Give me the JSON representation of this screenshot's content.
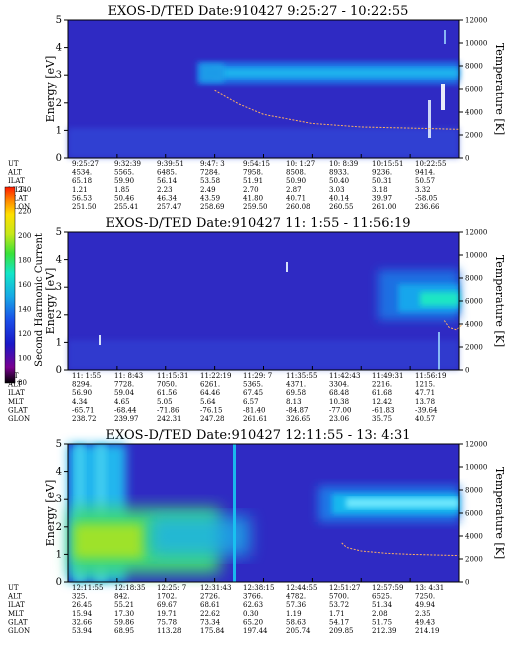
{
  "chart_data": [
    {
      "type": "heatmap",
      "title": "EXOS-D/TED   Date:910427  9:25:27 - 10:22:55",
      "ylabel": "Energy [eV]",
      "y2label": "Temperature [K]",
      "ylim": [
        0,
        5
      ],
      "y2lim": [
        0,
        12000
      ],
      "yticks": [
        "0",
        "1",
        "2",
        "3",
        "4",
        "5"
      ],
      "y2ticks": [
        "0",
        "2000",
        "4000",
        "6000",
        "8000",
        "10000",
        "12000"
      ],
      "row_labels": [
        "UT",
        "ALT",
        "ILAT",
        "MLT",
        "GLAT",
        "GLON"
      ],
      "columns": [
        [
          "9:25:27",
          "4534.",
          "65.18",
          "1.21",
          "56.53",
          "251.50"
        ],
        [
          "9:32:39",
          "5565.",
          "59.90",
          "1.85",
          "50.46",
          "255.41"
        ],
        [
          "9:39:51",
          "6485.",
          "56.14",
          "2.23",
          "46.34",
          "257.47"
        ],
        [
          "9:47: 3",
          "7284.",
          "53.58",
          "2.49",
          "43.59",
          "258.69"
        ],
        [
          "9:54:15",
          "7958.",
          "51.91",
          "2.70",
          "41.80",
          "259.50"
        ],
        [
          "10: 1:27",
          "8508.",
          "50.90",
          "2.87",
          "40.71",
          "260.08"
        ],
        [
          "10: 8:39",
          "8933.",
          "50.40",
          "3.03",
          "40.14",
          "260.55"
        ],
        [
          "10:15:51",
          "9236.",
          "50.31",
          "3.18",
          "39.97",
          "261.00"
        ],
        [
          "10:22:55",
          "9414.",
          "50.57",
          "3.32",
          "-58.05",
          "236.66"
        ]
      ],
      "temperature_trace": {
        "x": [
          3.0,
          3.5,
          4.0,
          5.0,
          6.0,
          7.0,
          8.0
        ],
        "y": [
          5900,
          4700,
          3800,
          3000,
          2700,
          2600,
          2500
        ]
      }
    },
    {
      "type": "heatmap",
      "title": "EXOS-D/TED   Date:910427  11: 1:55 - 11:56:19",
      "ylabel": "Energy [eV]",
      "y2label": "Temperature [K]",
      "ylim": [
        0,
        5
      ],
      "y2lim": [
        0,
        12000
      ],
      "yticks": [
        "0",
        "1",
        "2",
        "3",
        "4",
        "5"
      ],
      "y2ticks": [
        "0",
        "2000",
        "4000",
        "6000",
        "8000",
        "10000",
        "12000"
      ],
      "row_labels": [
        "UT",
        "ALT",
        "ILAT",
        "MLT",
        "GLAT",
        "GLON"
      ],
      "columns": [
        [
          "11: 1:55",
          "8294.",
          "56.90",
          "4.34",
          "-65.71",
          "238.72"
        ],
        [
          "11: 8:43",
          "7728.",
          "59.04",
          "4.65",
          "-68.44",
          "239.97"
        ],
        [
          "11:15:31",
          "7050.",
          "61.56",
          "5.05",
          "-71.86",
          "242.31"
        ],
        [
          "11:22:19",
          "6261.",
          "64.46",
          "5.64",
          "-76.15",
          "247.28"
        ],
        [
          "11:29: 7",
          "5365.",
          "67.45",
          "6.57",
          "-81.40",
          "261.61"
        ],
        [
          "11:35:55",
          "4371.",
          "69.58",
          "8.13",
          "-84.87",
          "326.65"
        ],
        [
          "11:42:43",
          "3304.",
          "68.48",
          "10.38",
          "-77.00",
          "23.06"
        ],
        [
          "11:49:31",
          "2216.",
          "61.68",
          "12.42",
          "-61.83",
          "35.75"
        ],
        [
          "11:56:19",
          "1215.",
          "47.71",
          "13.78",
          "-39.64",
          "40.57"
        ]
      ],
      "temperature_trace": {
        "x": [
          7.7,
          7.8,
          7.95,
          8.05
        ],
        "y": [
          4300,
          3700,
          3500,
          3900
        ]
      }
    },
    {
      "type": "heatmap",
      "title": "EXOS-D/TED   Date:910427  12:11:55 - 13: 4:31",
      "ylabel": "Energy [eV]",
      "y2label": "Temperature [K]",
      "ylim": [
        0,
        5
      ],
      "y2lim": [
        0,
        12000
      ],
      "yticks": [
        "0",
        "1",
        "2",
        "3",
        "4",
        "5"
      ],
      "y2ticks": [
        "0",
        "2000",
        "4000",
        "6000",
        "8000",
        "10000",
        "12000"
      ],
      "row_labels": [
        "UT",
        "ALT",
        "ILAT",
        "MLT",
        "GLAT",
        "GLON"
      ],
      "columns": [
        [
          "12:11:55",
          "325.",
          "26.45",
          "15.94",
          "32.66",
          "53.94"
        ],
        [
          "12:18:35",
          "842.",
          "55.21",
          "17.30",
          "59.86",
          "68.95"
        ],
        [
          "12:25: 7",
          "1702.",
          "69.67",
          "19.71",
          "75.78",
          "113.28"
        ],
        [
          "12:31:43",
          "2726.",
          "68.61",
          "22.62",
          "73.34",
          "175.84"
        ],
        [
          "12:38:15",
          "3766.",
          "62.63",
          "0.30",
          "65.20",
          "197.44"
        ],
        [
          "12:44:55",
          "4782.",
          "57.36",
          "1.19",
          "58.63",
          "205.74"
        ],
        [
          "12:51:27",
          "5700.",
          "53.72",
          "1.71",
          "54.17",
          "209.85"
        ],
        [
          "12:57:59",
          "6525.",
          "51.34",
          "2.08",
          "51.75",
          "212.39"
        ],
        [
          "13: 4:31",
          "7250.",
          "49.94",
          "2.35",
          "49.43",
          "214.19"
        ]
      ],
      "temperature_trace": {
        "x": [
          5.6,
          5.7,
          6.0,
          6.5,
          7.0,
          7.5,
          8.0
        ],
        "y": [
          3400,
          3000,
          2700,
          2500,
          2400,
          2350,
          2300
        ]
      }
    }
  ],
  "colorbar": {
    "label": "Second Harmonic Current",
    "ticks": [
      "80",
      "100",
      "120",
      "140",
      "160",
      "180",
      "200",
      "220",
      "240"
    ],
    "range": [
      80,
      240
    ],
    "colors": [
      "#000000",
      "#7a0090",
      "#1a18c8",
      "#1b4ee8",
      "#17a8e6",
      "#12e6c8",
      "#39e23a",
      "#c6e81a",
      "#ffe000",
      "#ff8a00",
      "#ff1a00"
    ]
  }
}
